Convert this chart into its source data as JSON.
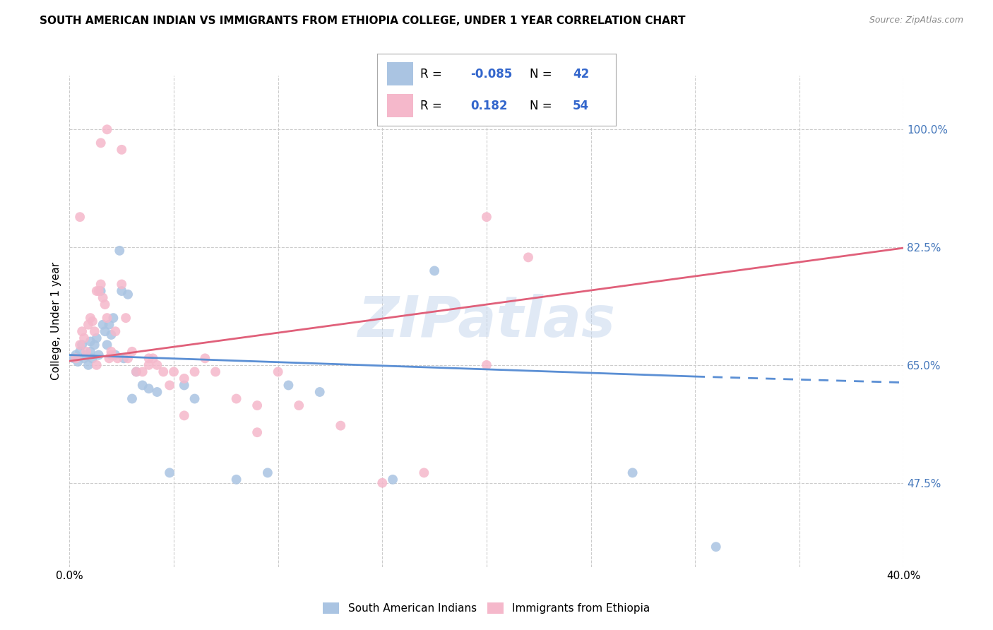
{
  "title": "SOUTH AMERICAN INDIAN VS IMMIGRANTS FROM ETHIOPIA COLLEGE, UNDER 1 YEAR CORRELATION CHART",
  "source": "Source: ZipAtlas.com",
  "ylabel": "College, Under 1 year",
  "xlim": [
    0.0,
    0.4
  ],
  "ylim": [
    0.35,
    1.08
  ],
  "xticks": [
    0.0,
    0.05,
    0.1,
    0.15,
    0.2,
    0.25,
    0.3,
    0.35,
    0.4
  ],
  "ytick_right": [
    0.475,
    0.65,
    0.825,
    1.0
  ],
  "ytick_labels_right": [
    "47.5%",
    "65.0%",
    "82.5%",
    "100.0%"
  ],
  "R_blue": -0.085,
  "N_blue": 42,
  "R_pink": 0.182,
  "N_pink": 54,
  "blue_color": "#aac4e2",
  "pink_color": "#f5b8cb",
  "blue_line_color": "#5b8fd4",
  "pink_line_color": "#e0607a",
  "watermark": "ZIPatlas",
  "blue_line_x0": 0.0,
  "blue_line_y0": 0.665,
  "blue_line_x1": 0.3,
  "blue_line_y1": 0.633,
  "blue_line_x1_dash": 0.4,
  "blue_line_y1_dash": 0.624,
  "pink_line_x0": 0.0,
  "pink_line_y0": 0.656,
  "pink_line_x1": 0.4,
  "pink_line_y1": 0.824,
  "blue_scatter_x": [
    0.002,
    0.003,
    0.004,
    0.005,
    0.006,
    0.007,
    0.008,
    0.009,
    0.01,
    0.01,
    0.011,
    0.012,
    0.013,
    0.014,
    0.015,
    0.016,
    0.017,
    0.018,
    0.019,
    0.02,
    0.021,
    0.022,
    0.024,
    0.025,
    0.026,
    0.028,
    0.03,
    0.032,
    0.035,
    0.038,
    0.042,
    0.048,
    0.055,
    0.06,
    0.08,
    0.095,
    0.105,
    0.12,
    0.155,
    0.175,
    0.27,
    0.31
  ],
  "blue_scatter_y": [
    0.66,
    0.665,
    0.655,
    0.67,
    0.68,
    0.66,
    0.665,
    0.65,
    0.67,
    0.685,
    0.66,
    0.68,
    0.69,
    0.665,
    0.76,
    0.71,
    0.7,
    0.68,
    0.71,
    0.695,
    0.72,
    0.665,
    0.82,
    0.76,
    0.66,
    0.755,
    0.6,
    0.64,
    0.62,
    0.615,
    0.61,
    0.49,
    0.62,
    0.6,
    0.48,
    0.49,
    0.62,
    0.61,
    0.48,
    0.79,
    0.49,
    0.38
  ],
  "pink_scatter_x": [
    0.003,
    0.005,
    0.006,
    0.007,
    0.008,
    0.009,
    0.01,
    0.011,
    0.012,
    0.013,
    0.014,
    0.015,
    0.016,
    0.017,
    0.018,
    0.019,
    0.02,
    0.022,
    0.023,
    0.025,
    0.027,
    0.028,
    0.03,
    0.032,
    0.035,
    0.038,
    0.04,
    0.042,
    0.045,
    0.048,
    0.05,
    0.055,
    0.06,
    0.065,
    0.07,
    0.08,
    0.09,
    0.1,
    0.11,
    0.13,
    0.15,
    0.17,
    0.2,
    0.22,
    0.2,
    0.005,
    0.013,
    0.02,
    0.038,
    0.055,
    0.09,
    0.025,
    0.018,
    0.015
  ],
  "pink_scatter_y": [
    0.66,
    0.68,
    0.7,
    0.69,
    0.67,
    0.71,
    0.72,
    0.715,
    0.7,
    0.76,
    0.76,
    0.77,
    0.75,
    0.74,
    0.72,
    0.66,
    0.665,
    0.7,
    0.66,
    0.77,
    0.72,
    0.66,
    0.67,
    0.64,
    0.64,
    0.65,
    0.66,
    0.65,
    0.64,
    0.62,
    0.64,
    0.63,
    0.64,
    0.66,
    0.64,
    0.6,
    0.59,
    0.64,
    0.59,
    0.56,
    0.475,
    0.49,
    0.87,
    0.81,
    0.65,
    0.87,
    0.65,
    0.67,
    0.66,
    0.575,
    0.55,
    0.97,
    1.0,
    0.98
  ]
}
